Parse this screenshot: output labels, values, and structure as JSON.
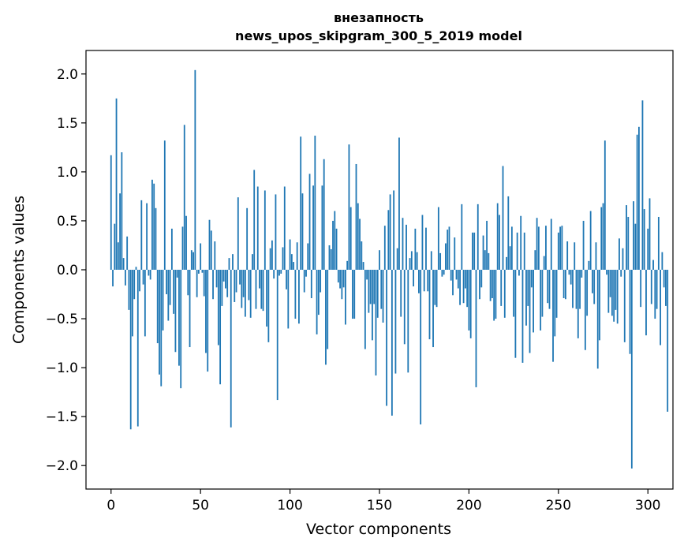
{
  "chart_data": {
    "type": "bar",
    "title": "внезапность",
    "subtitle": "news_upos_skipgram_300_5_2019 model",
    "xlabel": "Vector components",
    "ylabel": "Components values",
    "xlim": [
      -14,
      314
    ],
    "ylim": [
      -2.24,
      2.24
    ],
    "xticks": [
      0,
      50,
      100,
      150,
      200,
      250,
      300
    ],
    "yticks": [
      -2.0,
      -1.5,
      -1.0,
      -0.5,
      0.0,
      0.5,
      1.0,
      1.5,
      2.0
    ],
    "ytick_labels": [
      "−2.0",
      "−1.5",
      "−1.0",
      "−0.5",
      "0.0",
      "0.5",
      "1.0",
      "1.5",
      "2.0"
    ],
    "bar_color": "#1f77b4",
    "grid": false,
    "values": [
      1.17,
      -0.17,
      0.47,
      1.75,
      0.28,
      0.78,
      1.2,
      0.12,
      -0.16,
      0.34,
      -0.41,
      -1.63,
      -0.68,
      -0.3,
      0.03,
      -1.6,
      -0.22,
      0.71,
      -0.15,
      -0.68,
      0.68,
      -0.06,
      -0.1,
      0.92,
      0.88,
      0.63,
      -0.75,
      -1.07,
      -1.19,
      -0.62,
      1.32,
      -0.25,
      -0.52,
      -0.36,
      0.42,
      -0.45,
      -0.84,
      -0.08,
      -0.98,
      -1.21,
      0.44,
      1.48,
      0.55,
      -0.26,
      -0.79,
      0.2,
      0.18,
      2.04,
      -0.28,
      -0.04,
      0.27,
      -0.03,
      -0.27,
      -0.85,
      -1.04,
      0.51,
      0.4,
      -0.3,
      0.29,
      -0.18,
      -0.77,
      -1.17,
      -0.37,
      -0.12,
      -0.19,
      -0.28,
      0.12,
      -1.61,
      0.16,
      -0.33,
      -0.23,
      0.74,
      -0.15,
      -0.39,
      -0.28,
      -0.48,
      0.63,
      -0.31,
      -0.49,
      0.16,
      1.02,
      -0.4,
      0.85,
      -0.19,
      -0.4,
      -0.42,
      0.81,
      -0.58,
      -0.74,
      0.22,
      0.3,
      -0.09,
      0.77,
      -1.33,
      -0.06,
      -0.04,
      0.23,
      0.85,
      -0.2,
      -0.6,
      0.31,
      0.16,
      0.08,
      -0.5,
      0.28,
      -0.55,
      1.36,
      0.78,
      -0.23,
      -0.07,
      0.27,
      0.98,
      -0.29,
      0.86,
      1.37,
      -0.66,
      -0.46,
      -0.23,
      0.86,
      1.13,
      -0.97,
      -0.81,
      0.25,
      0.21,
      0.5,
      0.6,
      0.42,
      -0.13,
      -0.19,
      -0.3,
      -0.18,
      -0.56,
      0.09,
      1.28,
      0.64,
      -0.5,
      -0.5,
      1.08,
      0.68,
      0.52,
      0.29,
      0.08,
      -0.81,
      -0.1,
      -0.44,
      -0.35,
      -0.72,
      -0.35,
      -1.08,
      -0.49,
      0.2,
      -0.4,
      -0.54,
      0.45,
      -1.39,
      0.61,
      0.77,
      -1.49,
      0.81,
      -1.06,
      0.22,
      1.35,
      -0.48,
      0.53,
      -0.76,
      0.46,
      -1.05,
      0.12,
      0.19,
      -0.17,
      0.42,
      0.18,
      -0.24,
      -1.58,
      0.56,
      -0.22,
      0.43,
      -0.22,
      -0.71,
      0.19,
      -0.79,
      -0.36,
      -0.38,
      0.64,
      0.17,
      -0.07,
      -0.05,
      0.27,
      0.41,
      0.44,
      -0.11,
      -0.26,
      0.33,
      -0.1,
      -0.19,
      -0.36,
      0.67,
      -0.34,
      -0.19,
      -0.38,
      -0.62,
      -0.7,
      0.38,
      0.38,
      -1.2,
      0.67,
      -0.3,
      -0.18,
      0.35,
      0.2,
      0.5,
      0.17,
      -0.32,
      -0.29,
      -0.52,
      -0.5,
      0.68,
      0.56,
      -0.37,
      1.06,
      -0.49,
      0.13,
      0.75,
      0.24,
      0.44,
      -0.48,
      -0.9,
      0.38,
      -0.06,
      0.55,
      -0.95,
      0.38,
      -0.57,
      -0.37,
      -0.85,
      -0.18,
      -0.64,
      0.2,
      0.53,
      0.44,
      -0.62,
      -0.48,
      0.14,
      0.45,
      -0.34,
      -0.4,
      0.52,
      -0.94,
      -0.68,
      -0.49,
      0.38,
      0.44,
      0.45,
      -0.29,
      -0.3,
      0.29,
      -0.05,
      -0.15,
      -0.39,
      0.28,
      -0.4,
      -0.7,
      -0.4,
      -0.08,
      0.5,
      -0.82,
      -0.47,
      0.09,
      0.6,
      -0.24,
      -0.35,
      0.28,
      -1.01,
      -0.72,
      0.64,
      0.68,
      1.32,
      -0.05,
      -0.44,
      -0.28,
      -0.47,
      -0.53,
      -0.41,
      -0.55,
      0.32,
      -0.07,
      0.22,
      -0.74,
      0.66,
      0.54,
      -0.86,
      -2.03,
      0.7,
      0.47,
      1.38,
      1.46,
      -0.38,
      1.73,
      0.62,
      -0.67,
      0.42,
      0.73,
      -0.35,
      0.1,
      -0.5,
      -0.4,
      0.54,
      -0.77,
      0.18,
      -0.18,
      -0.37,
      -1.45
    ]
  }
}
